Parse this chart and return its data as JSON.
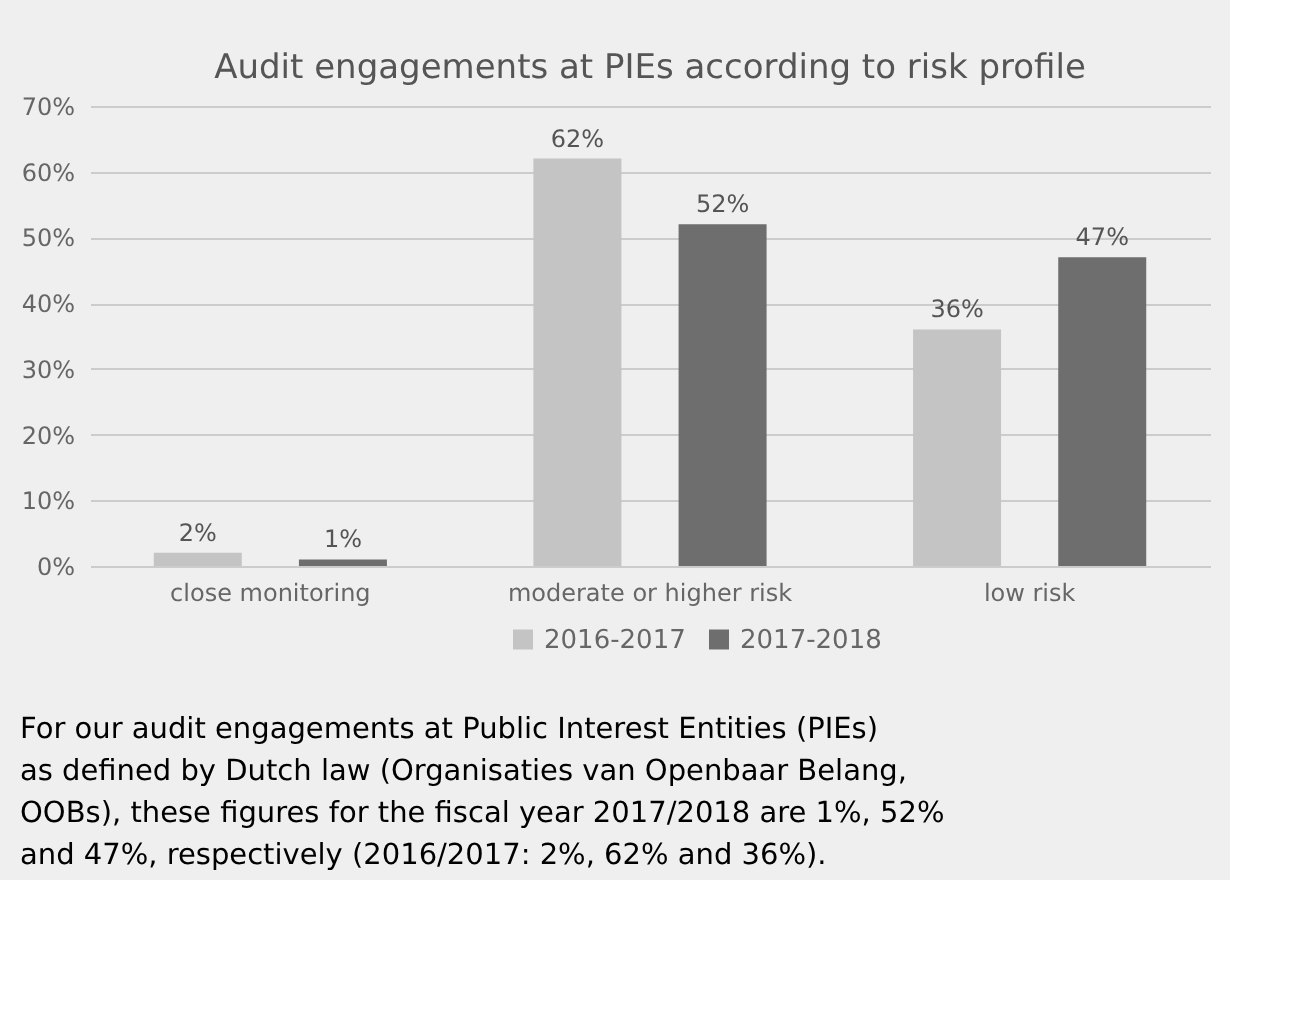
{
  "chart_data": {
    "type": "bar",
    "title": "Audit engagements at PIEs according to risk profile",
    "categories": [
      "close monitoring",
      "moderate or higher risk",
      "low risk"
    ],
    "series": [
      {
        "name": "2016-2017",
        "color": "#c4c4c4",
        "values": [
          2,
          62,
          36
        ],
        "value_labels": [
          "2%",
          "62%",
          "36%"
        ]
      },
      {
        "name": "2017-2018",
        "color": "#6e6e6e",
        "values": [
          1,
          52,
          47
        ],
        "value_labels": [
          "1%",
          "52%",
          "47%"
        ]
      }
    ],
    "ylim": [
      0,
      70
    ],
    "yticks": [
      {
        "value": 0,
        "label": "0%"
      },
      {
        "value": 10,
        "label": "10%"
      },
      {
        "value": 20,
        "label": "20%"
      },
      {
        "value": 30,
        "label": "30%"
      },
      {
        "value": 40,
        "label": "40%"
      },
      {
        "value": 50,
        "label": "50%"
      },
      {
        "value": 60,
        "label": "60%"
      },
      {
        "value": 70,
        "label": "70%"
      }
    ],
    "grid": "y",
    "legend": "bottom",
    "annotations": [
      "For our audit engagements at Public Interest Entities (PIEs) as defined by Dutch law (Organisaties van Openbaar Belang, OOBs), these figures for the fiscal year 2017/2018 are 1%, 52% and 47%, respectively (2016/2017: 2%, 62% and 36%)."
    ]
  }
}
